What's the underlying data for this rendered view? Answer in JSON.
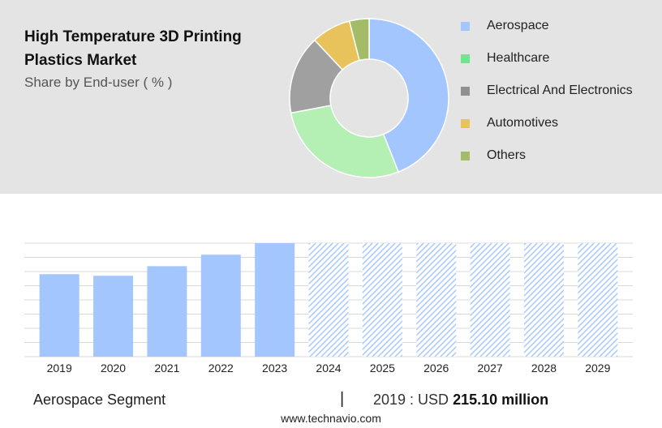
{
  "header": {
    "title": "High Temperature 3D Printing Plastics Market",
    "subtitle": "Share by End-user ( % )"
  },
  "chart_data": [
    {
      "type": "pie",
      "donut": true,
      "labels": [
        "Aerospace",
        "Healthcare",
        "Electrical And Electronics",
        "Automotives",
        "Others"
      ],
      "values": [
        44,
        28,
        16,
        8,
        4
      ],
      "colors": [
        "#a4c6ff",
        "#b4f0b4",
        "#a0a0a0",
        "#e8c25a",
        "#a4bc68"
      ],
      "legend_colors": [
        "#a4c6ff",
        "#6ee68c",
        "#909090",
        "#e8c25a",
        "#a4bc68"
      ],
      "legend_position": "right"
    },
    {
      "type": "bar",
      "categories": [
        "2019",
        "2020",
        "2021",
        "2022",
        "2023",
        "2024",
        "2025",
        "2026",
        "2027",
        "2028",
        "2029"
      ],
      "values": [
        215.1,
        211,
        236,
        266,
        296,
        null,
        null,
        null,
        null,
        null,
        null
      ],
      "forecast_categories": [
        "2024",
        "2025",
        "2026",
        "2027",
        "2028",
        "2029"
      ],
      "forecast_style": "hatched",
      "bar_color": "#a4c6ff",
      "ylim": [
        0,
        296
      ],
      "grid": true
    }
  ],
  "footer": {
    "segment": "Aerospace Segment",
    "separator": "|",
    "year_label": "2019 : USD",
    "value": "215.10 million",
    "source": "www.technavio.com"
  }
}
